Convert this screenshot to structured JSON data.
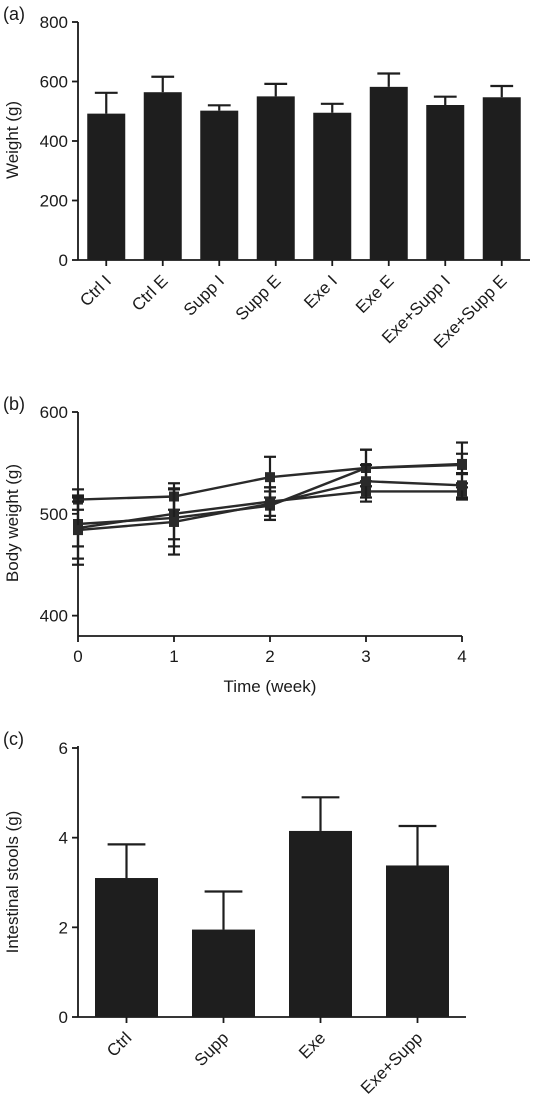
{
  "chart_data": [
    {
      "type": "bar",
      "panel_label": "(a)",
      "categories": [
        "Ctrl I",
        "Ctrl E",
        "Supp I",
        "Supp E",
        "Exe I",
        "Exe E",
        "Exe+Supp I",
        "Exe+Supp E"
      ],
      "values": [
        492,
        564,
        502,
        550,
        495,
        582,
        521,
        547
      ],
      "errors": [
        70,
        52,
        18,
        42,
        30,
        45,
        28,
        38
      ],
      "ylabel": "Weight (g)",
      "ylim": [
        0,
        800
      ],
      "yticks": [
        "0",
        "200",
        "400",
        "600",
        "800"
      ],
      "grid": false
    },
    {
      "type": "line",
      "panel_label": "(b)",
      "x": [
        0,
        1,
        2,
        3,
        4
      ],
      "xticks": [
        "0",
        "1",
        "2",
        "3",
        "4"
      ],
      "series": [
        {
          "values": [
            514,
            517,
            536,
            545,
            548
          ],
          "errors": [
            10,
            13,
            20,
            18,
            22
          ]
        },
        {
          "values": [
            490,
            496,
            508,
            545,
            549
          ],
          "errors": [
            22,
            28,
            14,
            18,
            10
          ]
        },
        {
          "values": [
            486,
            500,
            512,
            522,
            522
          ],
          "errors": [
            30,
            25,
            14,
            10,
            8
          ]
        },
        {
          "values": [
            484,
            492,
            510,
            532,
            528
          ],
          "errors": [
            34,
            32,
            16,
            16,
            12
          ]
        }
      ],
      "xlabel": "Time (week)",
      "ylabel": "Body weight (g)",
      "ylim": [
        380,
        600
      ],
      "yticks": [
        "400",
        "500",
        "600"
      ],
      "grid": false
    },
    {
      "type": "bar",
      "panel_label": "(c)",
      "categories": [
        "Ctrl",
        "Supp",
        "Exe",
        "Exe+Supp"
      ],
      "values": [
        3.1,
        1.95,
        4.15,
        3.38
      ],
      "errors": [
        0.75,
        0.85,
        0.75,
        0.88
      ],
      "ylabel": "Intestinal stools (g)",
      "ylim": [
        0,
        6
      ],
      "yticks": [
        "0",
        "2",
        "4",
        "6"
      ],
      "grid": false
    }
  ]
}
